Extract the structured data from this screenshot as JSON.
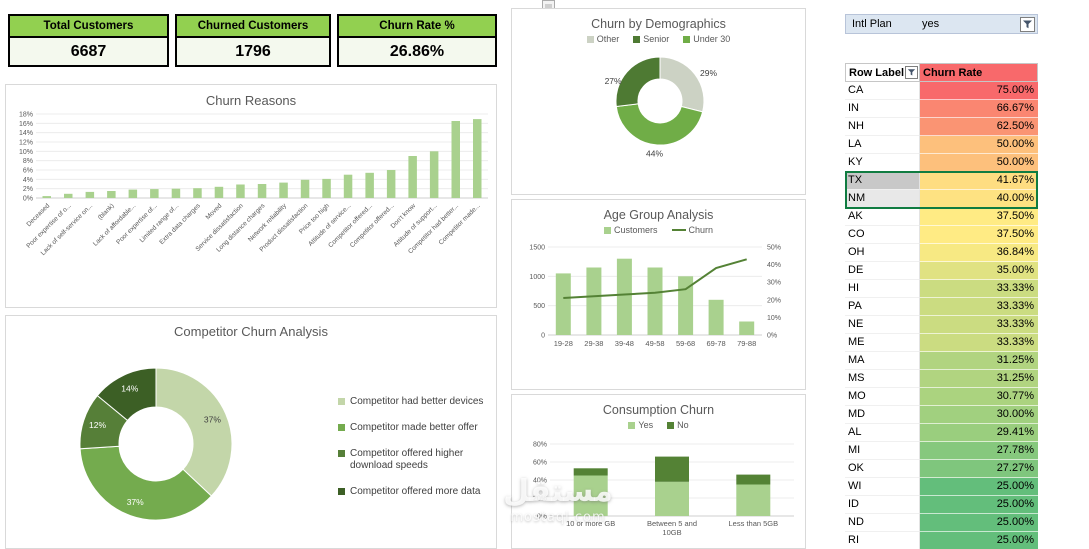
{
  "app": {
    "watermark_title": "مستقل",
    "watermark_domain": "mostaql.com"
  },
  "kpis": [
    {
      "label": "Total Customers",
      "value": "6687"
    },
    {
      "label": "Churned Customers",
      "value": "1796"
    },
    {
      "label": "Churn Rate %",
      "value": "26.86%"
    }
  ],
  "slicer": {
    "label": "Intl Plan",
    "value": "yes"
  },
  "state_table": {
    "col_state": "Row Label",
    "col_rate": "Churn Rate",
    "header_color": "#F8696B",
    "rows": [
      {
        "state": "CA",
        "rate": "75.00%",
        "color": "#F8696B"
      },
      {
        "state": "IN",
        "rate": "66.67%",
        "color": "#FA8671"
      },
      {
        "state": "NH",
        "rate": "62.50%",
        "color": "#FA9473"
      },
      {
        "state": "LA",
        "rate": "50.00%",
        "color": "#FDC07C"
      },
      {
        "state": "KY",
        "rate": "50.00%",
        "color": "#FDC07C"
      },
      {
        "state": "TX",
        "rate": "41.67%",
        "color": "#FEDD81",
        "selected": true,
        "active": true
      },
      {
        "state": "NM",
        "rate": "40.00%",
        "color": "#FEE282",
        "selected": true
      },
      {
        "state": "AK",
        "rate": "37.50%",
        "color": "#FFEB84"
      },
      {
        "state": "CO",
        "rate": "37.50%",
        "color": "#FFEB84"
      },
      {
        "state": "OH",
        "rate": "36.84%",
        "color": "#F7E983"
      },
      {
        "state": "DE",
        "rate": "35.00%",
        "color": "#E0E282"
      },
      {
        "state": "HI",
        "rate": "33.33%",
        "color": "#CBDC81"
      },
      {
        "state": "PA",
        "rate": "33.33%",
        "color": "#CBDC81"
      },
      {
        "state": "NE",
        "rate": "33.33%",
        "color": "#CBDC81"
      },
      {
        "state": "ME",
        "rate": "33.33%",
        "color": "#CBDC81"
      },
      {
        "state": "MA",
        "rate": "31.25%",
        "color": "#B1D480"
      },
      {
        "state": "MS",
        "rate": "31.25%",
        "color": "#B1D480"
      },
      {
        "state": "MO",
        "rate": "30.77%",
        "color": "#ABD37F"
      },
      {
        "state": "MD",
        "rate": "30.00%",
        "color": "#A1D07F"
      },
      {
        "state": "AL",
        "rate": "29.41%",
        "color": "#9ACE7E"
      },
      {
        "state": "MI",
        "rate": "27.78%",
        "color": "#86C87D"
      },
      {
        "state": "OK",
        "rate": "27.27%",
        "color": "#7FC67D"
      },
      {
        "state": "WI",
        "rate": "25.00%",
        "color": "#63BE7B"
      },
      {
        "state": "ID",
        "rate": "25.00%",
        "color": "#63BE7B"
      },
      {
        "state": "ND",
        "rate": "25.00%",
        "color": "#63BE7B"
      },
      {
        "state": "RI",
        "rate": "25.00%",
        "color": "#63BE7B"
      }
    ]
  },
  "chart_data": [
    {
      "id": "churn_reasons",
      "type": "bar",
      "title": "Churn Reasons",
      "categories": [
        "Deceased",
        "Poor expertise of o...",
        "Lack of self-service on...",
        "(blank)",
        "Lack of affordable...",
        "Poor expertise of...",
        "Limited range of...",
        "Extra data charges",
        "Moved",
        "Service dissatisfaction",
        "Long distance charges",
        "Network reliability",
        "Product dissatisfaction",
        "Price too high",
        "Attitude of service...",
        "Competitor offered...",
        "Competitor offered...",
        "Don't know",
        "Attitude of support...",
        "Competitor had better...",
        "Competitor made..."
      ],
      "values": [
        0.4,
        0.9,
        1.3,
        1.5,
        1.8,
        1.9,
        2.0,
        2.1,
        2.4,
        2.9,
        3.0,
        3.3,
        3.9,
        4.1,
        5.0,
        5.4,
        6.0,
        9.0,
        10.0,
        16.5,
        16.9
      ],
      "ylim": [
        0,
        18
      ],
      "ytick_step": 2,
      "yticks": [
        "0%",
        "2%",
        "4%",
        "6%",
        "8%",
        "10%",
        "12%",
        "14%",
        "16%",
        "18%"
      ],
      "bar_color": "#A9D18E",
      "grid": true,
      "legend_position": "none"
    },
    {
      "id": "demographics",
      "type": "pie",
      "title": "Churn by Demographics",
      "donut": true,
      "legend": [
        {
          "label": "Other",
          "color": "#CCD2C4"
        },
        {
          "label": "Senior",
          "color": "#4E7A33"
        },
        {
          "label": "Under 30",
          "color": "#70AD47"
        }
      ],
      "slices": [
        {
          "label": "Other",
          "value": 29,
          "color": "#CCD2C4",
          "text": "29%",
          "text_color": "#404040",
          "label_angle": 60,
          "label_radius": 56
        },
        {
          "label": "Under 30",
          "value": 44,
          "color": "#70AD47",
          "text": "44%",
          "text_color": "#404040",
          "label_angle": 186,
          "label_radius": 53
        },
        {
          "label": "Senior",
          "value": 27,
          "color": "#4E7A33",
          "text": "27%",
          "text_color": "#404040",
          "label_angle": 293,
          "label_radius": 51
        }
      ]
    },
    {
      "id": "age_group",
      "type": "bar+line",
      "title": "Age Group Analysis",
      "categories": [
        "19-28",
        "29-38",
        "39-48",
        "49-58",
        "59-68",
        "69-78",
        "79-88"
      ],
      "series": [
        {
          "name": "Customers",
          "type": "bar",
          "axis": "left",
          "color": "#A9D18E",
          "values": [
            1050,
            1150,
            1300,
            1150,
            1000,
            600,
            230
          ]
        },
        {
          "name": "Churn",
          "type": "line",
          "axis": "right",
          "color": "#548235",
          "values": [
            21,
            22,
            23,
            24,
            26,
            38,
            43
          ]
        }
      ],
      "ylim_left": [
        0,
        1500
      ],
      "yticks_left": [
        "0",
        "500",
        "1000",
        "1500"
      ],
      "ylim_right": [
        0,
        50
      ],
      "yticks_right": [
        "0%",
        "10%",
        "20%",
        "30%",
        "40%",
        "50%"
      ],
      "legend_position": "top"
    },
    {
      "id": "competitor",
      "type": "pie",
      "title": "Competitor Churn Analysis",
      "donut": true,
      "legend_position": "right",
      "slices": [
        {
          "label": "Competitor had better devices",
          "value": 37,
          "color": "#C3D6A9",
          "text": "37%",
          "text_color": "#404040"
        },
        {
          "label": "Competitor made better offer",
          "value": 37,
          "color": "#74AB4E",
          "text": "37%",
          "text_color": "#FFFFFF"
        },
        {
          "label": "Competitor offered higher download speeds",
          "value": 12,
          "color": "#567F38",
          "text": "12%",
          "text_color": "#FFFFFF"
        },
        {
          "label": "Competitor offered more data",
          "value": 14,
          "color": "#3C5F25",
          "text": "14%",
          "text_color": "#FFFFFF"
        }
      ]
    },
    {
      "id": "consumption",
      "type": "stacked-bar",
      "title": "Consumption Churn",
      "categories": [
        "10 or more GB",
        "Between 5 and 10GB",
        "Less than 5GB"
      ],
      "series": [
        {
          "name": "Yes",
          "color": "#A9D18E",
          "values": [
            45,
            38,
            35
          ]
        },
        {
          "name": "No",
          "color": "#548235",
          "values": [
            8,
            28,
            11
          ]
        }
      ],
      "ylim": [
        0,
        80
      ],
      "ytick_step": 20,
      "yticks": [
        "0%",
        "20%",
        "40%",
        "60%",
        "80%"
      ],
      "legend_position": "top"
    }
  ]
}
